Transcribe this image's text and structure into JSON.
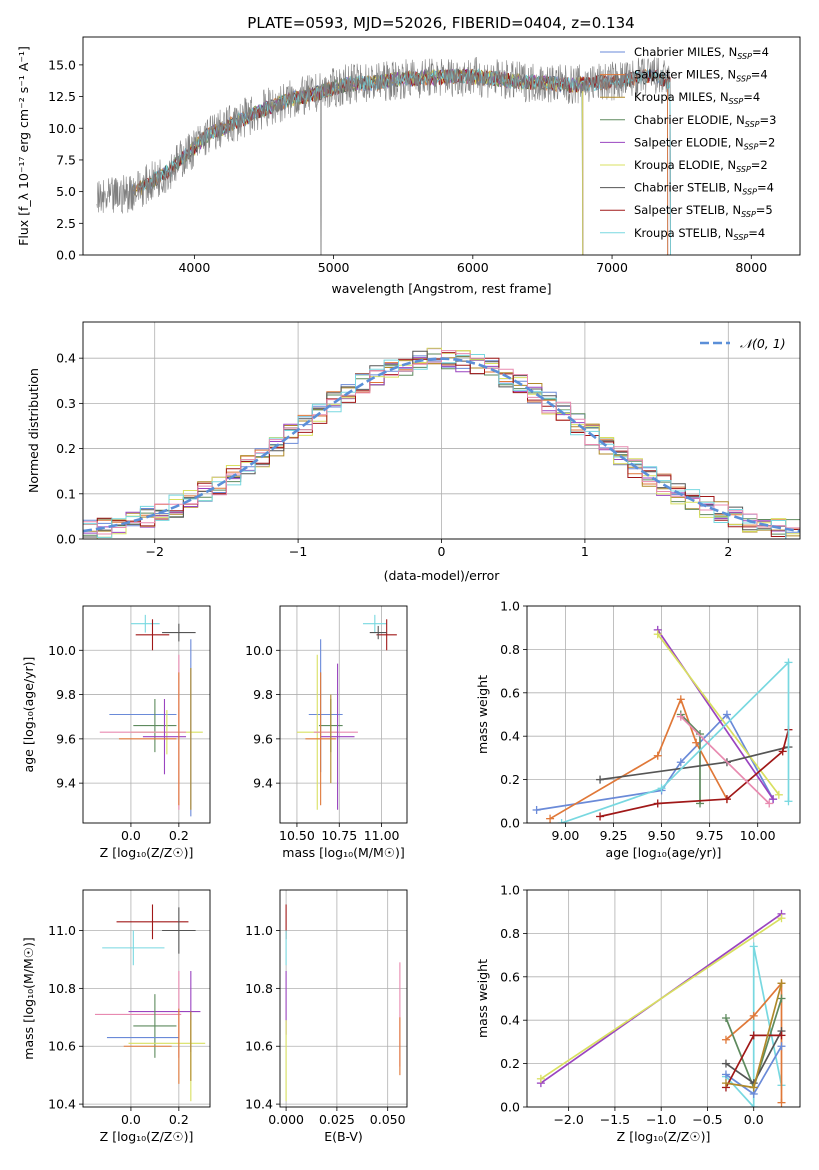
{
  "figure": {
    "title": "PLATE=0593, MJD=52026, FIBERID=0404, z=0.134"
  },
  "colors": {
    "Chabrier MILES": "#6a8ad8",
    "Salpeter MILES": "#e07838",
    "Kroupa MILES": "#b08a2a",
    "Chabrier ELODIE": "#5e8a5e",
    "Salpeter ELODIE": "#9a44c0",
    "Kroupa ELODIE": "#d8e060",
    "Chabrier STELIB": "#555555",
    "Salpeter STELIB": "#a01818",
    "Kroupa STELIB": "#78d8e0",
    "data": "#808080",
    "pink": "#e88ab0",
    "gauss": "#5b8fd8"
  },
  "chart_data": [
    {
      "id": "spectrum",
      "type": "line",
      "xlabel": "wavelength [Angstrom, rest frame]",
      "ylabel": "Flux [f_λ 10⁻¹⁷ erg cm⁻² s⁻¹ A⁻¹]",
      "xlim": [
        3200,
        8350
      ],
      "ylim": [
        0,
        17.2
      ],
      "xticks": [
        4000,
        5000,
        6000,
        7000,
        8000
      ],
      "yticks": [
        0.0,
        2.5,
        5.0,
        7.5,
        10.0,
        12.5,
        15.0
      ],
      "legend_position": "right",
      "data_envelope": {
        "x": [
          3300,
          3500,
          3650,
          3800,
          3950,
          4100,
          4300,
          4500,
          4700,
          4900,
          5100,
          5300,
          5500,
          5700,
          5900,
          6100,
          6300,
          6500,
          6700,
          6900,
          7100,
          7300,
          7420
        ],
        "y": [
          4.2,
          4.8,
          5.5,
          6.5,
          8.0,
          9.5,
          10.5,
          11.5,
          12.3,
          12.8,
          13.5,
          13.6,
          13.9,
          14.0,
          14.1,
          14.0,
          13.7,
          13.6,
          13.4,
          13.6,
          13.8,
          14.2,
          13.6
        ]
      },
      "series": [
        {
          "name": "Chabrier MILES, N_SSP=4",
          "sub": "SSP",
          "label_main": "Chabrier MILES, N",
          "label_tail": "=4",
          "x_end": 7400
        },
        {
          "name": "Salpeter MILES, N_SSP=4",
          "sub": "SSP",
          "label_main": "Salpeter MILES, N",
          "label_tail": "=4",
          "x_end": 7400
        },
        {
          "name": "Kroupa MILES, N_SSP=4",
          "sub": "SSP",
          "label_main": "Kroupa MILES, N",
          "label_tail": "=4",
          "x_end": 6790
        },
        {
          "name": "Chabrier ELODIE, N_SSP=3",
          "sub": "SSP",
          "label_main": "Chabrier ELODIE, N",
          "label_tail": "=3",
          "x_end": 6790
        },
        {
          "name": "Salpeter ELODIE, N_SSP=2",
          "sub": "SSP",
          "label_main": "Salpeter ELODIE, N",
          "label_tail": "=2",
          "x_end": 6790
        },
        {
          "name": "Kroupa ELODIE, N_SSP=2",
          "sub": "SSP",
          "label_main": "Kroupa ELODIE, N",
          "label_tail": "=2",
          "x_end": 6790
        },
        {
          "name": "Chabrier STELIB, N_SSP=4",
          "sub": "SSP",
          "label_main": "Chabrier STELIB, N",
          "label_tail": "=4",
          "x_end": 7420
        },
        {
          "name": "Salpeter STELIB, N_SSP=5",
          "sub": "SSP",
          "label_main": "Salpeter STELIB, N",
          "label_tail": "=5",
          "x_end": 7420
        },
        {
          "name": "Kroupa STELIB, N_SSP=4",
          "sub": "SSP",
          "label_main": "Kroupa STELIB, N",
          "label_tail": "=4",
          "x_end": 7420
        }
      ]
    },
    {
      "id": "residuals",
      "type": "line",
      "xlabel": "(data-model)/error",
      "ylabel": "Normed distribution",
      "xlim": [
        -2.5,
        2.5
      ],
      "ylim": [
        0,
        0.48
      ],
      "xticks": [
        -2,
        -1,
        0,
        1,
        2
      ],
      "yticks": [
        0.0,
        0.1,
        0.2,
        0.3,
        0.4
      ],
      "grid": true,
      "legend_position": "top-right",
      "gaussian_label": "𝒩(0, 1)",
      "bin_width": 0.1,
      "hist_series": [
        "Chabrier MILES",
        "Salpeter MILES",
        "Kroupa MILES",
        "Chabrier ELODIE",
        "Salpeter ELODIE",
        "Kroupa ELODIE",
        "Chabrier STELIB",
        "Salpeter STELIB",
        "Kroupa STELIB",
        "pink"
      ]
    },
    {
      "id": "age_vs_Z",
      "type": "scatter",
      "xlabel": "Z [log₁₀(Z/Z☉)]",
      "ylabel": "age  [log₁₀(age/yr)]",
      "xlim": [
        -0.2,
        0.33
      ],
      "ylim": [
        9.22,
        10.2
      ],
      "xticks": [
        0.0,
        0.2
      ],
      "yticks": [
        9.4,
        9.6,
        9.8,
        10.0
      ],
      "grid": true,
      "points": [
        {
          "s": "Kroupa STELIB",
          "x": 0.06,
          "y": 10.12,
          "xe": 0.06,
          "ye": 0.04
        },
        {
          "s": "Salpeter STELIB",
          "x": 0.09,
          "y": 10.07,
          "xe": 0.07,
          "ye": 0.07
        },
        {
          "s": "Chabrier STELIB",
          "x": 0.2,
          "y": 10.08,
          "xe": 0.07,
          "ye": 0.04
        },
        {
          "s": "Chabrier MILES",
          "x": 0.05,
          "y": 9.71,
          "xe": 0.14,
          "ye": 0.0
        },
        {
          "s": "Chabrier MILES",
          "x": 0.25,
          "y": 9.65,
          "xe": 0.0,
          "ye": 0.4
        },
        {
          "s": "Chabrier ELODIE",
          "x": 0.1,
          "y": 9.66,
          "xe": 0.09,
          "ye": 0.12
        },
        {
          "s": "Kroupa ELODIE",
          "x": 0.15,
          "y": 9.63,
          "xe": 0.15,
          "ye": 0.1
        },
        {
          "s": "pink",
          "x": 0.05,
          "y": 9.63,
          "xe": 0.18,
          "ye": 0.0
        },
        {
          "s": "pink",
          "x": 0.2,
          "y": 9.63,
          "xe": 0.0,
          "ye": 0.35
        },
        {
          "s": "Salpeter ELODIE",
          "x": 0.14,
          "y": 9.61,
          "xe": 0.09,
          "ye": 0.17
        },
        {
          "s": "Salpeter MILES",
          "x": 0.07,
          "y": 9.6,
          "xe": 0.12,
          "ye": 0.0
        },
        {
          "s": "Salpeter MILES",
          "x": 0.2,
          "y": 9.6,
          "xe": 0.0,
          "ye": 0.3
        },
        {
          "s": "Kroupa MILES",
          "x": 0.25,
          "y": 9.6,
          "xe": 0.0,
          "ye": 0.32
        }
      ]
    },
    {
      "id": "age_vs_mass",
      "type": "scatter",
      "xlabel": "mass [log₁₀(M/M☉)]",
      "ylabel": "",
      "xlim": [
        10.4,
        11.15
      ],
      "ylim": [
        9.22,
        10.2
      ],
      "xticks": [
        10.5,
        10.75,
        11.0
      ],
      "yticks": [
        9.4,
        9.6,
        9.8,
        10.0
      ],
      "grid": true,
      "points": [
        {
          "s": "Kroupa STELIB",
          "x": 10.96,
          "y": 10.12,
          "xe": 0.07,
          "ye": 0.04
        },
        {
          "s": "Salpeter STELIB",
          "x": 11.03,
          "y": 10.07,
          "xe": 0.06,
          "ye": 0.07
        },
        {
          "s": "Chabrier STELIB",
          "x": 10.98,
          "y": 10.08,
          "xe": 0.05,
          "ye": 0.03
        },
        {
          "s": "Chabrier MILES",
          "x": 10.67,
          "y": 9.71,
          "xe": 0.1,
          "ye": 0.0
        },
        {
          "s": "Chabrier MILES",
          "x": 10.64,
          "y": 9.75,
          "xe": 0.0,
          "ye": 0.3
        },
        {
          "s": "Chabrier ELODIE",
          "x": 10.7,
          "y": 9.66,
          "xe": 0.07,
          "ye": 0.12
        },
        {
          "s": "Kroupa ELODIE",
          "x": 10.62,
          "y": 9.63,
          "xe": 0.12,
          "ye": 0.35
        },
        {
          "s": "pink",
          "x": 10.73,
          "y": 9.63,
          "xe": 0.13,
          "ye": 0.0
        },
        {
          "s": "Salpeter ELODIE",
          "x": 10.74,
          "y": 9.61,
          "xe": 0.1,
          "ye": 0.33
        },
        {
          "s": "Salpeter MILES",
          "x": 10.64,
          "y": 9.6,
          "xe": 0.09,
          "ye": 0.3
        },
        {
          "s": "Kroupa MILES",
          "x": 10.7,
          "y": 9.6,
          "xe": 0.0,
          "ye": 0.2
        }
      ]
    },
    {
      "id": "weight_vs_age",
      "type": "line",
      "xlabel": "age  [log₁₀(age/yr)]",
      "ylabel": "mass weight",
      "xlim": [
        8.8,
        10.22
      ],
      "ylim": [
        0,
        1
      ],
      "xticks": [
        9.0,
        9.25,
        9.5,
        9.75,
        10.0
      ],
      "yticks": [
        0.0,
        0.2,
        0.4,
        0.6,
        0.8,
        1.0
      ],
      "grid": true,
      "series": [
        {
          "s": "Chabrier MILES",
          "x": [
            8.85,
            9.5,
            9.6,
            9.84,
            10.08
          ],
          "y": [
            0.06,
            0.15,
            0.28,
            0.5,
            0.11
          ]
        },
        {
          "s": "Salpeter MILES",
          "x": [
            8.92,
            9.48,
            9.6,
            9.68,
            9.84
          ],
          "y": [
            0.02,
            0.31,
            0.57,
            0.37,
            0.11
          ]
        },
        {
          "s": "Chabrier ELODIE",
          "x": [
            9.6,
            9.7,
            9.7
          ],
          "y": [
            0.5,
            0.41,
            0.09
          ]
        },
        {
          "s": "Salpeter ELODIE",
          "x": [
            9.48,
            10.08
          ],
          "y": [
            0.89,
            0.11
          ]
        },
        {
          "s": "Kroupa ELODIE",
          "x": [
            9.48,
            10.11
          ],
          "y": [
            0.87,
            0.13
          ]
        },
        {
          "s": "Chabrier STELIB",
          "x": [
            9.18,
            9.84,
            10.16
          ],
          "y": [
            0.2,
            0.28,
            0.35
          ]
        },
        {
          "s": "Salpeter STELIB",
          "x": [
            9.18,
            9.48,
            9.84,
            10.13,
            10.16
          ],
          "y": [
            0.03,
            0.09,
            0.11,
            0.33,
            0.43
          ]
        },
        {
          "s": "Kroupa STELIB",
          "x": [
            8.98,
            9.5,
            10.16,
            10.16
          ],
          "y": [
            0.0,
            0.16,
            0.74,
            0.1
          ]
        },
        {
          "s": "pink",
          "x": [
            9.6,
            10.06
          ],
          "y": [
            0.49,
            0.09
          ]
        }
      ]
    },
    {
      "id": "mass_vs_Z",
      "type": "scatter",
      "xlabel": "Z [log₁₀(Z/Z☉)]",
      "ylabel": "mass [log₁₀(M/M☉)]",
      "xlim": [
        -0.2,
        0.33
      ],
      "ylim": [
        10.39,
        11.14
      ],
      "xticks": [
        0.0,
        0.2
      ],
      "yticks": [
        10.4,
        10.6,
        10.8,
        11.0
      ],
      "grid": true,
      "points": [
        {
          "s": "Salpeter STELIB",
          "x": 0.09,
          "y": 11.03,
          "xe": 0.15,
          "ye": 0.06
        },
        {
          "s": "Chabrier STELIB",
          "x": 0.2,
          "y": 11.0,
          "xe": 0.07,
          "ye": 0.08
        },
        {
          "s": "Kroupa STELIB",
          "x": 0.01,
          "y": 10.94,
          "xe": 0.13,
          "ye": 0.06
        },
        {
          "s": "Salpeter ELODIE",
          "x": 0.14,
          "y": 10.72,
          "xe": 0.15,
          "ye": 0.0
        },
        {
          "s": "Salpeter ELODIE",
          "x": 0.25,
          "y": 10.72,
          "xe": 0.0,
          "ye": 0.14
        },
        {
          "s": "pink",
          "x": 0.03,
          "y": 10.71,
          "xe": 0.18,
          "ye": 0.0
        },
        {
          "s": "pink",
          "x": 0.2,
          "y": 10.71,
          "xe": 0.0,
          "ye": 0.15
        },
        {
          "s": "Chabrier ELODIE",
          "x": 0.1,
          "y": 10.67,
          "xe": 0.09,
          "ye": 0.11
        },
        {
          "s": "Chabrier MILES",
          "x": 0.05,
          "y": 10.63,
          "xe": 0.15,
          "ye": 0.0
        },
        {
          "s": "Kroupa ELODIE",
          "x": 0.15,
          "y": 10.61,
          "xe": 0.16,
          "ye": 0.0
        },
        {
          "s": "Kroupa ELODIE",
          "x": 0.25,
          "y": 10.55,
          "xe": 0.0,
          "ye": 0.14
        },
        {
          "s": "Salpeter MILES",
          "x": 0.07,
          "y": 10.6,
          "xe": 0.1,
          "ye": 0.0
        },
        {
          "s": "Salpeter MILES",
          "x": 0.2,
          "y": 10.6,
          "xe": 0.0,
          "ye": 0.13
        },
        {
          "s": "Kroupa MILES",
          "x": 0.25,
          "y": 10.6,
          "xe": 0.0,
          "ye": 0.12
        }
      ]
    },
    {
      "id": "mass_vs_ebv",
      "type": "scatter",
      "xlabel": "E(B-V)",
      "ylabel": "",
      "xlim": [
        -0.003,
        0.0595
      ],
      "ylim": [
        10.39,
        11.14
      ],
      "xticks": [
        0.0,
        0.025,
        0.05
      ],
      "yticks": [
        10.4,
        10.6,
        10.8,
        11.0
      ],
      "grid": true,
      "points": [
        {
          "s": "Salpeter STELIB",
          "x": 0.0,
          "y": 11.03,
          "xe": 0.0,
          "ye": 0.06
        },
        {
          "s": "Kroupa STELIB",
          "x": 0.0,
          "y": 10.94,
          "xe": 0.0,
          "ye": 0.06
        },
        {
          "s": "Salpeter ELODIE",
          "x": 0.0,
          "y": 10.75,
          "xe": 0.0,
          "ye": 0.11
        },
        {
          "s": "Kroupa ELODIE",
          "x": 0.0,
          "y": 10.55,
          "xe": 0.0,
          "ye": 0.14
        },
        {
          "s": "pink",
          "x": 0.056,
          "y": 10.71,
          "xe": 0.0,
          "ye": 0.18
        },
        {
          "s": "Salpeter MILES",
          "x": 0.056,
          "y": 10.6,
          "xe": 0.0,
          "ye": 0.1
        }
      ]
    },
    {
      "id": "weight_vs_Z",
      "type": "line",
      "xlabel": "Z [log₁₀(Z/Z☉)]",
      "ylabel": "mass weight",
      "xlim": [
        -2.45,
        0.5
      ],
      "ylim": [
        0,
        1
      ],
      "xticks": [
        -2.0,
        -1.5,
        -1.0,
        -0.5,
        0.0
      ],
      "yticks": [
        0.0,
        0.2,
        0.4,
        0.6,
        0.8,
        1.0
      ],
      "grid": true,
      "series": [
        {
          "s": "Salpeter ELODIE",
          "x": [
            -2.3,
            0.3
          ],
          "y": [
            0.11,
            0.89
          ]
        },
        {
          "s": "Kroupa ELODIE",
          "x": [
            -2.3,
            0.3
          ],
          "y": [
            0.13,
            0.87
          ]
        },
        {
          "s": "Kroupa STELIB",
          "x": [
            -0.3,
            0.0,
            0.0,
            0.3
          ],
          "y": [
            0.14,
            0.0,
            0.74,
            0.1
          ]
        },
        {
          "s": "Salpeter MILES",
          "x": [
            -0.3,
            0.0,
            0.3,
            0.3
          ],
          "y": [
            0.31,
            0.42,
            0.57,
            0.02
          ]
        },
        {
          "s": "Chabrier ELODIE",
          "x": [
            -0.3,
            0.0,
            0.3
          ],
          "y": [
            0.41,
            0.09,
            0.5
          ]
        },
        {
          "s": "Chabrier MILES",
          "x": [
            -0.3,
            0.0,
            0.3
          ],
          "y": [
            0.15,
            0.06,
            0.28
          ]
        },
        {
          "s": "Chabrier STELIB",
          "x": [
            -0.3,
            0.0,
            0.3
          ],
          "y": [
            0.2,
            0.11,
            0.35
          ]
        },
        {
          "s": "Salpeter STELIB",
          "x": [
            -0.3,
            0.0,
            0.3
          ],
          "y": [
            0.09,
            0.33,
            0.33
          ]
        },
        {
          "s": "Kroupa MILES",
          "x": [
            -0.3,
            0.0,
            0.3
          ],
          "y": [
            0.11,
            0.09,
            0.57
          ]
        }
      ]
    }
  ]
}
